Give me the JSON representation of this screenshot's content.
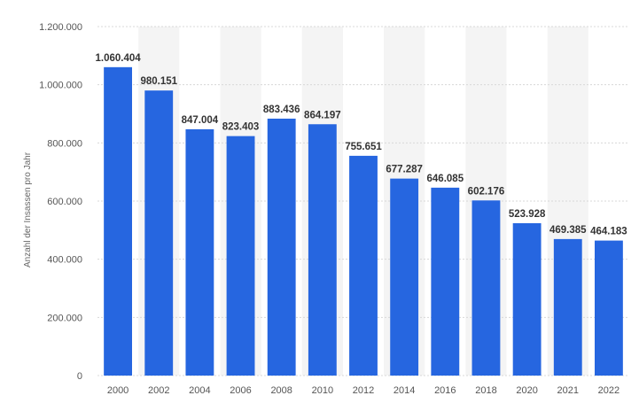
{
  "chart_data": {
    "type": "bar",
    "categories": [
      "2000",
      "2002",
      "2004",
      "2006",
      "2008",
      "2010",
      "2012",
      "2014",
      "2016",
      "2018",
      "2020",
      "2021",
      "2022"
    ],
    "values": [
      1060404,
      980151,
      847004,
      823403,
      883436,
      864197,
      755651,
      677287,
      646085,
      602176,
      523928,
      469385,
      464183
    ],
    "value_labels": [
      "1.060.404",
      "980.151",
      "847.004",
      "823.403",
      "883.436",
      "864.197",
      "755.651",
      "677.287",
      "646.085",
      "602.176",
      "523.928",
      "469.385",
      "464.183"
    ],
    "ylabel": "Anzahl der Insassen pro Jahr",
    "xlabel": "",
    "ylim": [
      0,
      1200000
    ],
    "yticks": [
      0,
      200000,
      400000,
      600000,
      800000,
      1000000,
      1200000
    ],
    "ytick_labels": [
      "0",
      "200.000",
      "400.000",
      "600.000",
      "800.000",
      "1.000.000",
      "1.200.000"
    ],
    "grid": true,
    "bar_color": "#2666e0",
    "band_color": "#f4f4f4",
    "grid_color": "#d8d8d8"
  }
}
